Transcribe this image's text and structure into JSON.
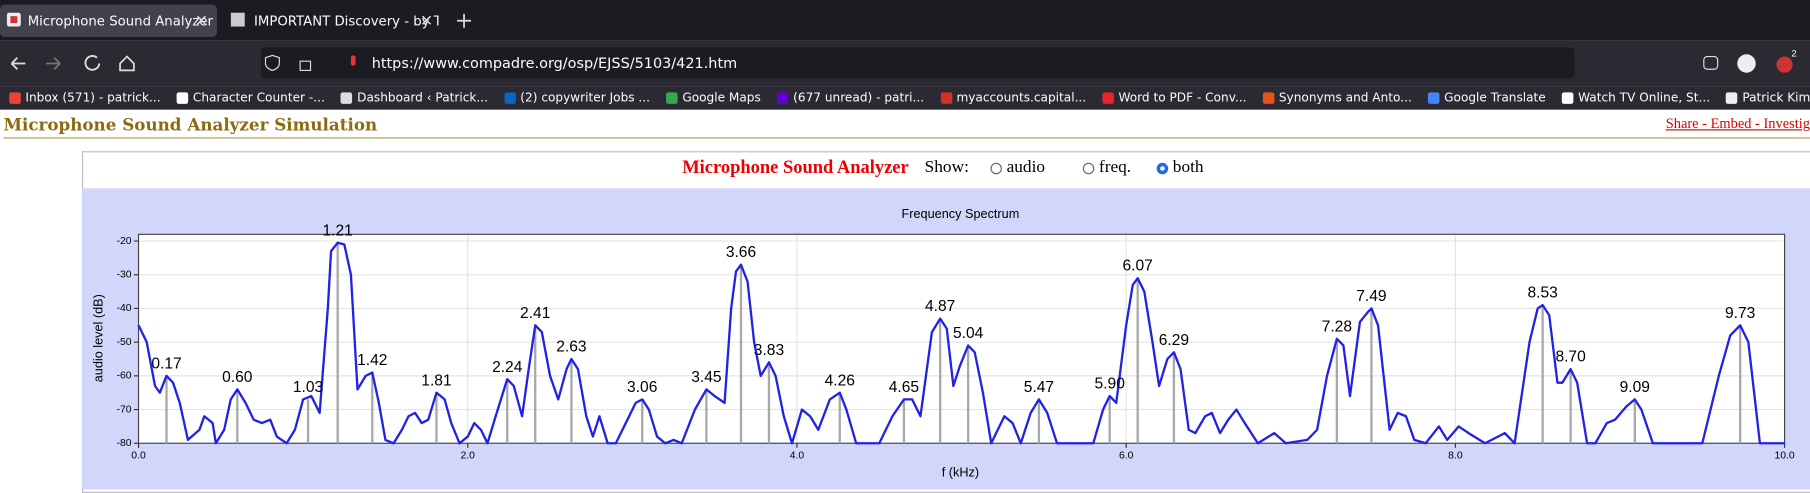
{
  "browser": {
    "tabs": [
      "Microphone Sound Analyzer",
      "IMPORTANT Discovery - by Targ"
    ],
    "url": "https://www.compadre.org/osp/EJSS/5103/421.htm",
    "extension_badge": "2",
    "bookmarks": [
      "Inbox (571) - patrick...",
      "Character Counter -...",
      "Dashboard ‹ Patrick...",
      "(2) copywriter Jobs ...",
      "Google Maps",
      "(677 unread) - patri...",
      "myaccounts.capital...",
      "Word to PDF - Conv...",
      "Synonyms and Anto...",
      "Google Translate",
      "Watch TV Online, St...",
      "Patrick Kim (@patri..."
    ]
  },
  "page": {
    "heading": "Microphone Sound Analyzer Simulation",
    "share_link": "Share - Embed - Investiga",
    "panel_title": "Microphone Sound Analyzer",
    "show_label": "Show:",
    "show_options": [
      "audio",
      "freq.",
      "both"
    ],
    "selected": 2
  },
  "chart_data": {
    "type": "line",
    "title": "Frequency Spectrum",
    "x_label": "f (kHz)",
    "y_label": "audio level (dB)",
    "xlim": [
      0,
      10
    ],
    "ylim": [
      -80,
      -18
    ],
    "xticks": [
      {
        "value": 0,
        "label": "0.0"
      },
      {
        "value": 2,
        "label": "2.0"
      },
      {
        "value": 4,
        "label": "4.0"
      },
      {
        "value": 6,
        "label": "6.0"
      },
      {
        "value": 8,
        "label": "8.0"
      },
      {
        "value": 10,
        "label": "10.0"
      }
    ],
    "yticks": [
      -20,
      -30,
      -40,
      -50,
      -60,
      -70,
      -80
    ],
    "grid": true,
    "series": [
      {
        "name": "spectrum",
        "color": "#2222e6",
        "x": [
          0.0,
          0.05,
          0.1,
          0.13,
          0.17,
          0.21,
          0.25,
          0.3,
          0.37,
          0.4,
          0.45,
          0.47,
          0.52,
          0.56,
          0.6,
          0.65,
          0.7,
          0.75,
          0.8,
          0.84,
          0.9,
          0.95,
          1.0,
          1.05,
          1.1,
          1.15,
          1.17,
          1.21,
          1.25,
          1.29,
          1.33,
          1.38,
          1.42,
          1.46,
          1.5,
          1.55,
          1.6,
          1.64,
          1.68,
          1.72,
          1.76,
          1.81,
          1.86,
          1.9,
          1.95,
          2.0,
          2.04,
          2.08,
          2.12,
          2.17,
          2.24,
          2.28,
          2.33,
          2.37,
          2.41,
          2.45,
          2.5,
          2.55,
          2.6,
          2.63,
          2.67,
          2.72,
          2.76,
          2.8,
          2.85,
          2.9,
          2.96,
          3.02,
          3.06,
          3.1,
          3.15,
          3.2,
          3.25,
          3.3,
          3.38,
          3.45,
          3.5,
          3.56,
          3.6,
          3.63,
          3.66,
          3.7,
          3.74,
          3.78,
          3.83,
          3.87,
          3.92,
          3.97,
          4.03,
          4.08,
          4.13,
          4.2,
          4.26,
          4.3,
          4.36,
          4.5,
          4.58,
          4.65,
          4.7,
          4.75,
          4.82,
          4.87,
          4.91,
          4.95,
          4.99,
          5.04,
          5.08,
          5.13,
          5.18,
          5.26,
          5.31,
          5.36,
          5.42,
          5.47,
          5.52,
          5.58,
          5.8,
          5.86,
          5.9,
          5.94,
          6.0,
          6.04,
          6.07,
          6.11,
          6.16,
          6.2,
          6.25,
          6.29,
          6.33,
          6.38,
          6.42,
          6.48,
          6.52,
          6.57,
          6.62,
          6.67,
          6.72,
          6.8,
          6.9,
          6.97,
          7.1,
          7.16,
          7.22,
          7.28,
          7.32,
          7.36,
          7.42,
          7.47,
          7.49,
          7.53,
          7.6,
          7.65,
          7.7,
          7.75,
          7.82,
          7.9,
          7.95,
          8.02,
          8.08,
          8.18,
          8.3,
          8.36,
          8.45,
          8.5,
          8.53,
          8.57,
          8.62,
          8.65,
          8.7,
          8.74,
          8.8,
          8.85,
          8.92,
          8.97,
          9.04,
          9.09,
          9.13,
          9.2,
          9.5,
          9.6,
          9.67,
          9.73,
          9.78,
          9.85,
          10.0
        ],
        "values": [
          -45,
          -50,
          -63,
          -65,
          -60,
          -62,
          -68,
          -79,
          -76,
          -72,
          -74,
          -80,
          -76,
          -67,
          -64,
          -68,
          -73,
          -74,
          -73,
          -78,
          -80,
          -76,
          -67,
          -66,
          -71,
          -40,
          -23,
          -20.5,
          -21,
          -30,
          -64,
          -60,
          -59,
          -68,
          -79,
          -80,
          -76,
          -72,
          -71,
          -74,
          -73,
          -65,
          -67,
          -74,
          -80,
          -78,
          -74,
          -76,
          -80,
          -72,
          -61,
          -63,
          -72,
          -58,
          -45,
          -47,
          -60,
          -67,
          -58,
          -55,
          -58,
          -72,
          -78,
          -72,
          -80,
          -80,
          -74,
          -68,
          -67,
          -70,
          -78,
          -80,
          -79,
          -80,
          -70,
          -64,
          -66,
          -68,
          -40,
          -29,
          -27,
          -32,
          -50,
          -60,
          -56,
          -60,
          -72,
          -80,
          -70,
          -72,
          -76,
          -67,
          -65,
          -70,
          -80,
          -80,
          -72,
          -67,
          -67,
          -72,
          -47,
          -43,
          -46,
          -63,
          -57,
          -51,
          -53,
          -65,
          -80,
          -72,
          -74,
          -80,
          -71,
          -67,
          -71,
          -80,
          -80,
          -70,
          -66,
          -68,
          -45,
          -33,
          -31,
          -35,
          -50,
          -63,
          -55,
          -53,
          -58,
          -76,
          -77,
          -72,
          -71,
          -77,
          -73,
          -70,
          -74,
          -80,
          -77,
          -80,
          -79,
          -76,
          -60,
          -49,
          -51,
          -66,
          -44,
          -41,
          -40,
          -45,
          -76,
          -71,
          -72,
          -79,
          -80,
          -75,
          -79,
          -75,
          -77,
          -80,
          -77,
          -80,
          -50,
          -40,
          -39,
          -42,
          -62,
          -62,
          -58,
          -62,
          -80,
          -80,
          -74,
          -73,
          -69,
          -67,
          -70,
          -80,
          -80,
          -60,
          -48,
          -45,
          -50,
          -80,
          -80
        ]
      }
    ],
    "peaks": {
      "color": "#a8a8a8",
      "x": [
        0.17,
        0.6,
        1.03,
        1.21,
        1.42,
        1.81,
        2.24,
        2.41,
        2.63,
        3.06,
        3.45,
        3.66,
        3.83,
        4.26,
        4.65,
        4.87,
        5.04,
        5.47,
        5.9,
        6.07,
        6.29,
        7.28,
        7.49,
        8.53,
        8.7,
        9.09,
        9.73
      ],
      "x_labels": [
        "0.17",
        "0.60",
        "1.03",
        "1.21",
        "1.42",
        "1.81",
        "2.24",
        "2.41",
        "2.63",
        "3.06",
        "3.45",
        "3.66",
        "3.83",
        "4.26",
        "4.65",
        "4.87",
        "5.04",
        "5.47",
        "5.90",
        "6.07",
        "6.29",
        "7.28",
        "7.49",
        "8.53",
        "8.70",
        "9.09",
        "9.73"
      ],
      "values": [
        -60,
        -64,
        -67,
        -20.5,
        -59,
        -65,
        -61,
        -45,
        -55,
        -67,
        -64,
        -27,
        -56,
        -65,
        -67,
        -43,
        -51,
        -67,
        -66,
        -31,
        -53,
        -49,
        -40,
        -39,
        -58,
        -67,
        -45
      ]
    }
  }
}
